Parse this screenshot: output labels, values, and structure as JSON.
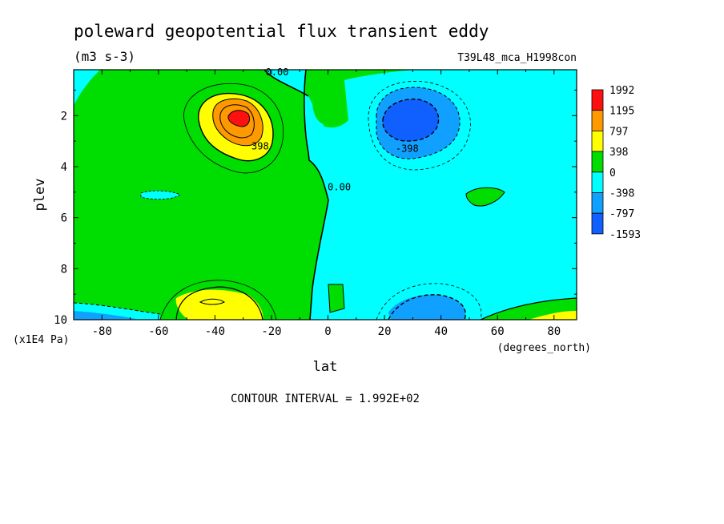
{
  "chart_data": {
    "type": "heatmap",
    "title": "poleward geopotential flux transient eddy",
    "subtitle": "(m3 s-3)",
    "dataset_label": "T39L48_mca_H1998con",
    "xlabel": "lat",
    "x_units": "(degrees_north)",
    "ylabel": "plev",
    "y_units": "(x1E4 Pa)",
    "xlim": [
      -90,
      88
    ],
    "ylim": [
      10,
      0.2
    ],
    "x_ticks": [
      "-80",
      "-60",
      "-40",
      "-20",
      "0",
      "20",
      "40",
      "60",
      "80"
    ],
    "x_tick_values": [
      -80,
      -60,
      -40,
      -20,
      0,
      20,
      40,
      60,
      80
    ],
    "y_ticks": [
      "2",
      "4",
      "6",
      "8",
      "10"
    ],
    "y_tick_values": [
      2,
      4,
      6,
      8,
      10
    ],
    "contour_labels": [
      {
        "text": "0.00",
        "lat": -18,
        "plev": 0.3
      },
      {
        "text": "398",
        "lat": -24,
        "plev": 3.2
      },
      {
        "text": "0.00",
        "lat": 4,
        "plev": 4.8
      },
      {
        "text": "-398",
        "lat": 28,
        "plev": 3.3
      }
    ],
    "legend": {
      "levels": [
        "1992",
        "1195",
        "797",
        "398",
        "0",
        "-398",
        "-797",
        "-1593"
      ],
      "colors": [
        "#ff1010",
        "#ff9900",
        "#ffff00",
        "#00dd00",
        "#00ffff",
        "#10a0ff",
        "#1060ff"
      ]
    },
    "footer": "CONTOUR INTERVAL = 1.992E+02",
    "grid": false
  }
}
